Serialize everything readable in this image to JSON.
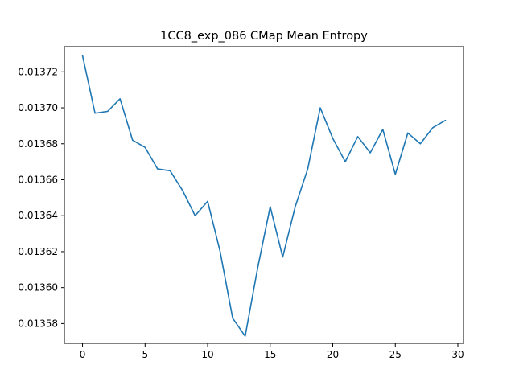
{
  "chart_data": {
    "type": "line",
    "title": "1CC8_exp_086 CMap Mean Entropy",
    "xlabel": "",
    "ylabel": "",
    "xlim": [
      -1.45,
      30.45
    ],
    "ylim": [
      0.013569,
      0.013734
    ],
    "x_ticks": [
      0,
      5,
      10,
      15,
      20,
      25,
      30
    ],
    "x_tick_labels": [
      "0",
      "5",
      "10",
      "15",
      "20",
      "25",
      "30"
    ],
    "y_ticks": [
      0.01358,
      0.0136,
      0.01362,
      0.01364,
      0.01366,
      0.01368,
      0.0137,
      0.01372
    ],
    "y_tick_labels": [
      "0.01358",
      "0.01360",
      "0.01362",
      "0.01364",
      "0.01366",
      "0.01368",
      "0.01370",
      "0.01372"
    ],
    "grid": false,
    "series": [
      {
        "color": "#1f77b4",
        "x": [
          0,
          1,
          2,
          3,
          4,
          5,
          6,
          7,
          8,
          9,
          10,
          11,
          12,
          13,
          14,
          15,
          16,
          17,
          18,
          19,
          20,
          21,
          22,
          23,
          24,
          25,
          26,
          27,
          28,
          29
        ],
        "values": [
          0.013729,
          0.013697,
          0.013698,
          0.013705,
          0.013682,
          0.013678,
          0.013666,
          0.013665,
          0.013654,
          0.01364,
          0.013648,
          0.01362,
          0.013583,
          0.013573,
          0.013611,
          0.013645,
          0.013617,
          0.013645,
          0.013666,
          0.0137,
          0.013683,
          0.01367,
          0.013684,
          0.013675,
          0.013688,
          0.013663,
          0.013686,
          0.01368,
          0.013689,
          0.013693
        ]
      }
    ]
  }
}
